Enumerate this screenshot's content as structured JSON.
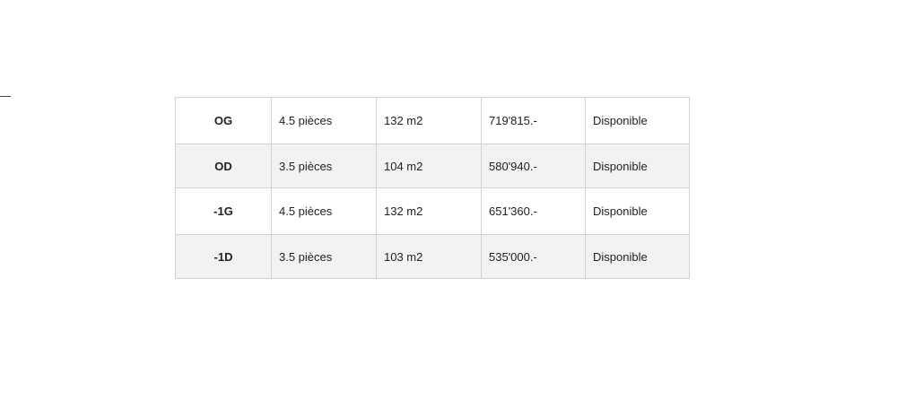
{
  "rows": [
    {
      "lot": "OG",
      "rooms": "4.5 pièces",
      "area": "132 m2",
      "price": "719'815.-",
      "status": "Disponible"
    },
    {
      "lot": "OD",
      "rooms": "3.5 pièces",
      "area": "104 m2",
      "price": "580'940.-",
      "status": "Disponible"
    },
    {
      "lot": "-1G",
      "rooms": "4.5 pièces",
      "area": "132 m2",
      "price": "651'360.-",
      "status": "Disponible"
    },
    {
      "lot": "-1D",
      "rooms": "3.5 pièces",
      "area": "103 m2",
      "price": "535'000.-",
      "status": "Disponible"
    }
  ]
}
